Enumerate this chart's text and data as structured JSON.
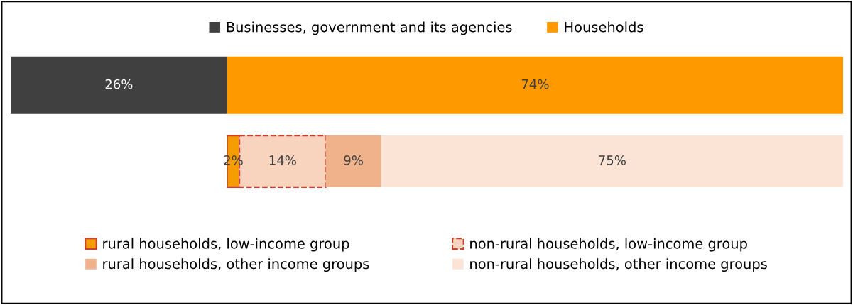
{
  "chart_data": [
    {
      "type": "bar",
      "orientation": "horizontal",
      "stacked": true,
      "categories": [
        null
      ],
      "legend": "top",
      "tick_labels": false,
      "series": [
        {
          "name": "Businesses, government and its agencies",
          "color": "#404040",
          "values": [
            26
          ],
          "value_labels": [
            "26%"
          ]
        },
        {
          "name": "Households",
          "color": "#ff9900",
          "values": [
            74
          ],
          "value_labels": [
            "74%"
          ]
        }
      ]
    },
    {
      "type": "bar",
      "orientation": "horizontal",
      "stacked": true,
      "categories": [
        null
      ],
      "legend": "bottom",
      "tick_labels": false,
      "series": [
        {
          "name": "rural households, low-income group",
          "color": "#f59c00",
          "line_style": "solid",
          "values": [
            2
          ],
          "value_labels": [
            "2%"
          ]
        },
        {
          "name": "non-rural households, low-income group",
          "color": "#f8d3bd",
          "line_style": "dashed",
          "values": [
            14
          ],
          "value_labels": [
            "14%"
          ]
        },
        {
          "name": "rural households, other income groups",
          "color": "#efb28a",
          "values": [
            9
          ],
          "value_labels": [
            "9%"
          ]
        },
        {
          "name": "non-rural households, other income groups",
          "color": "#fbe4d6",
          "values": [
            75
          ],
          "value_labels": [
            "75%"
          ]
        }
      ]
    }
  ]
}
